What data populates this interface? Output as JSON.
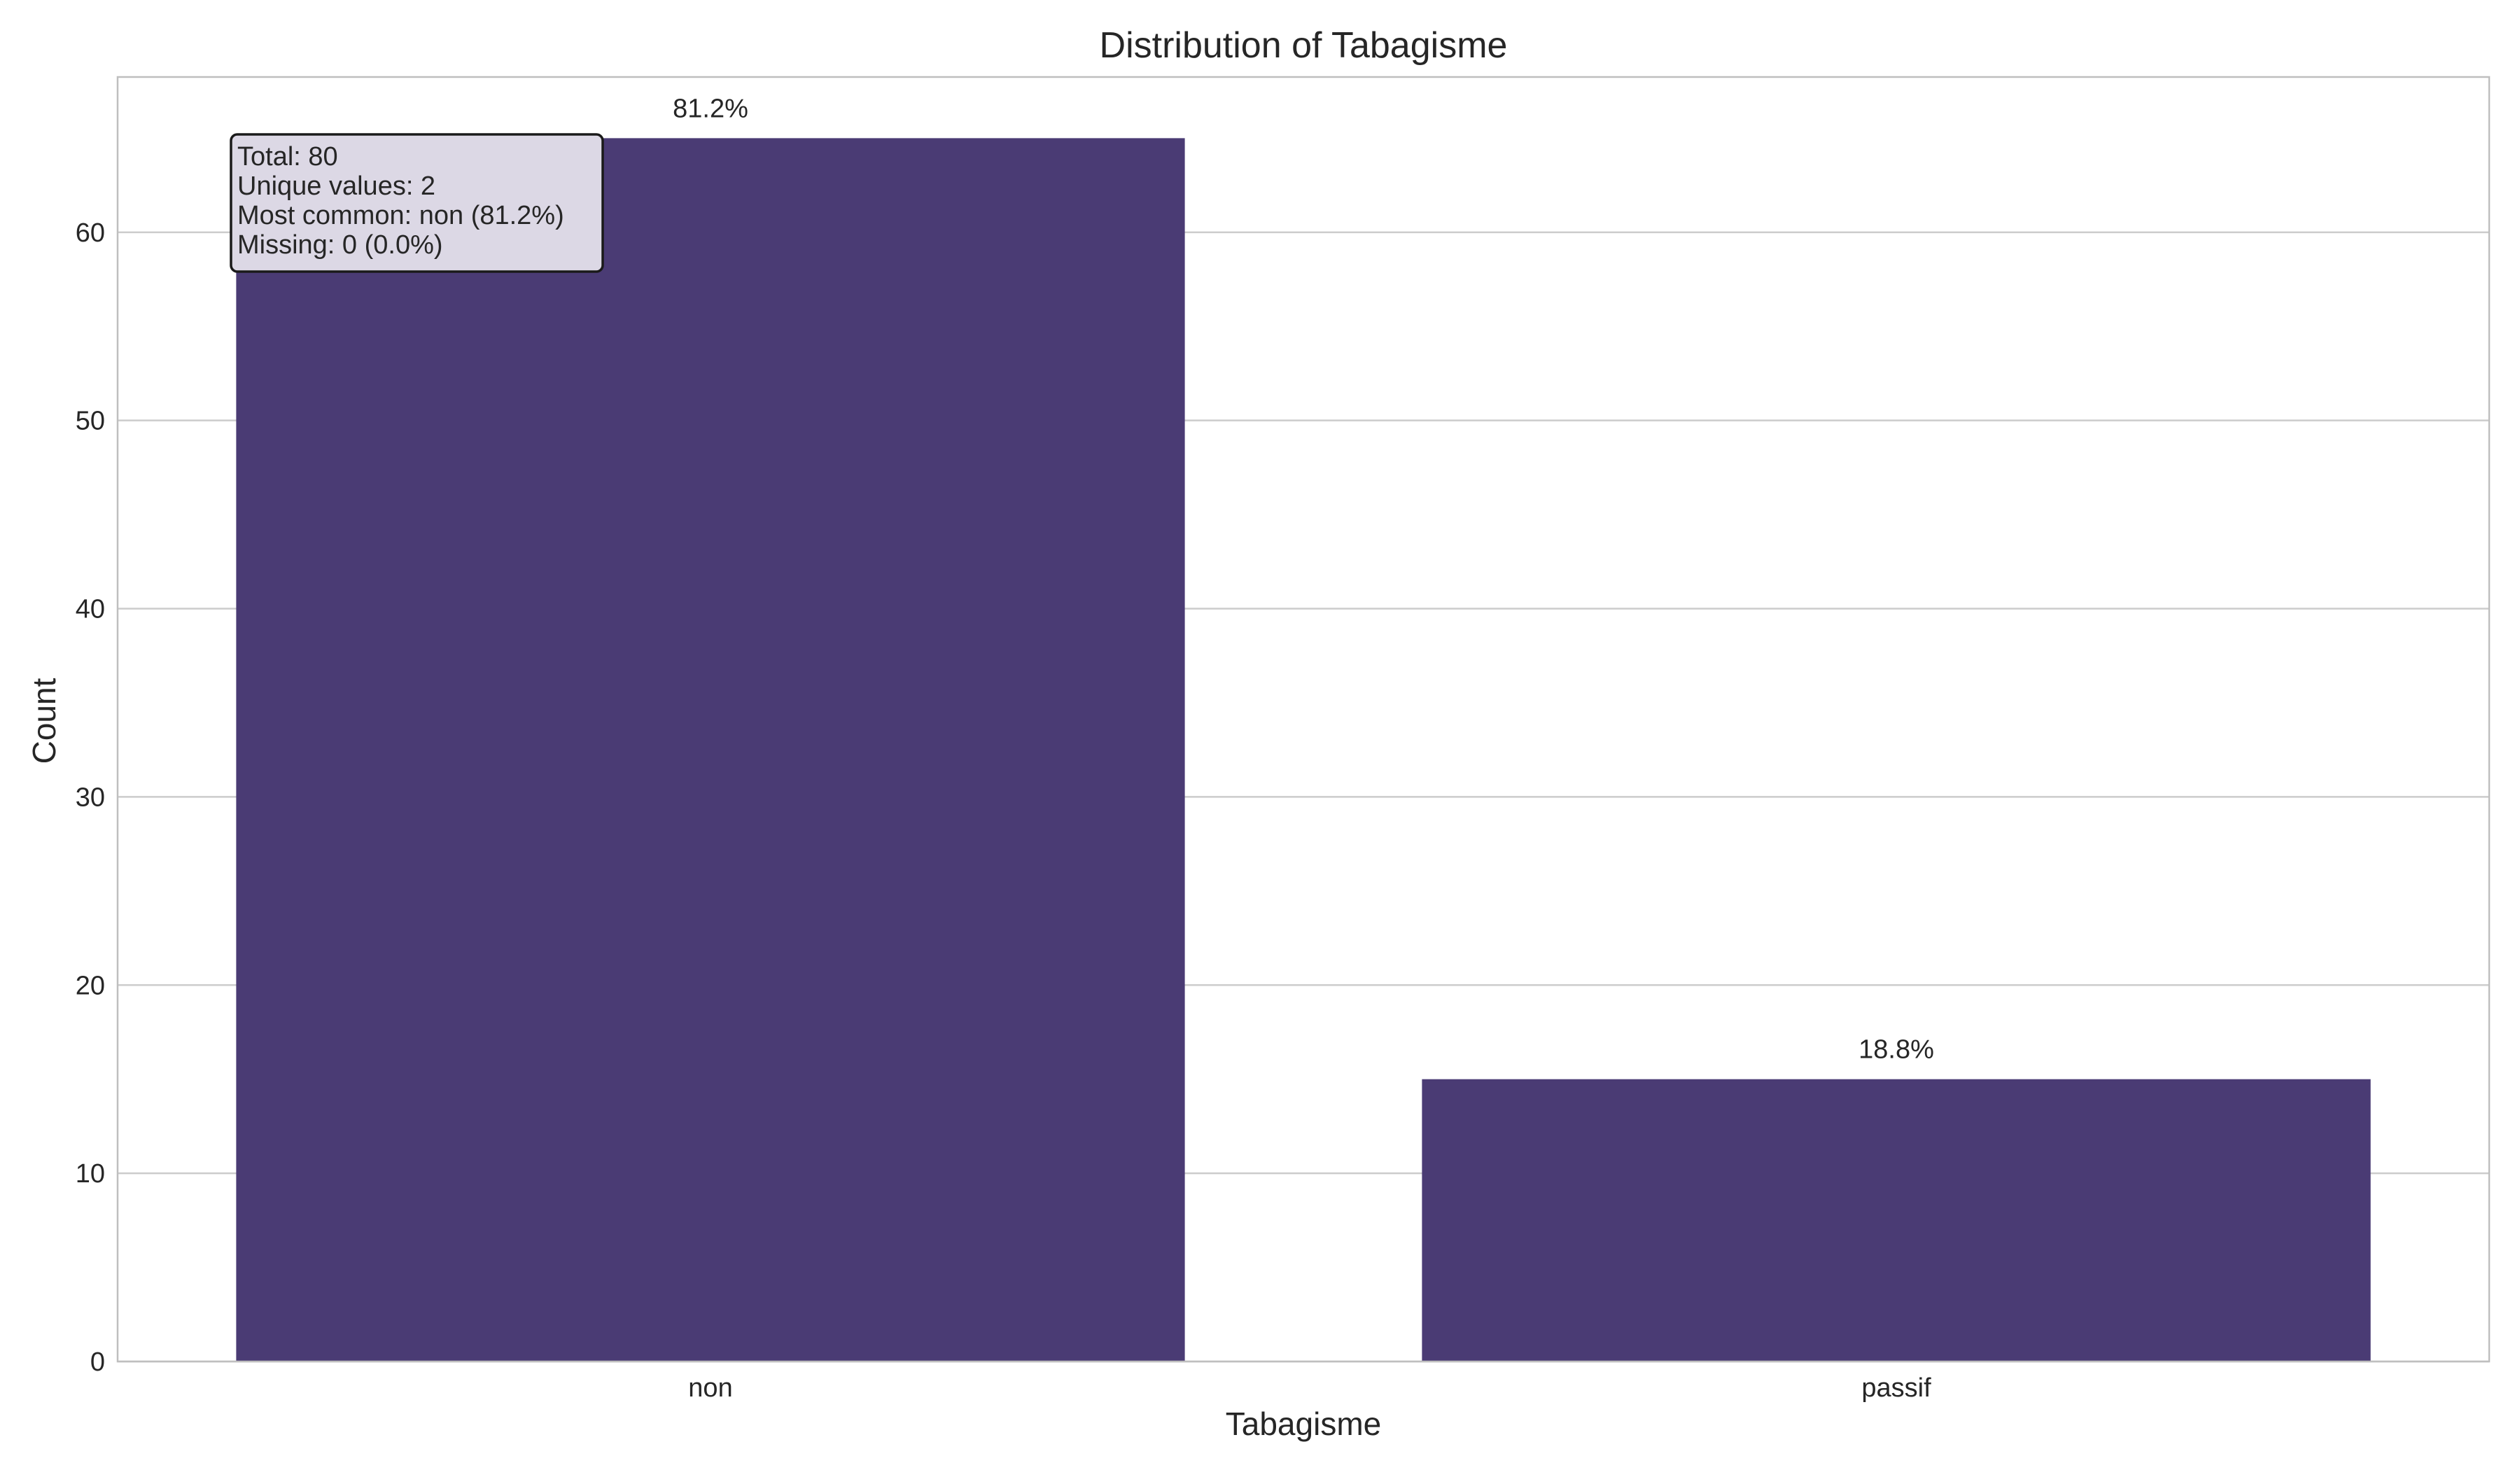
{
  "colors": {
    "bar": "#4a3b74",
    "grid": "#cccccc",
    "frame": "#bfbfbf",
    "text": "#262626",
    "stats_box_fill": "#dcd8e5",
    "stats_box_border": "#1a1a1a"
  },
  "chart_data": {
    "type": "bar",
    "title": "Distribution of Tabagisme",
    "xlabel": "Tabagisme",
    "ylabel": "Count",
    "categories": [
      "non",
      "passif"
    ],
    "values": [
      65,
      15
    ],
    "data_labels": [
      "81.2%",
      "18.8%"
    ],
    "ylim": [
      0,
      68.25
    ],
    "yticks": [
      0,
      10,
      20,
      30,
      40,
      50,
      60
    ],
    "grid": "horizontal",
    "legend": "none",
    "annotation": {
      "placement": "top-left",
      "lines": [
        "Total: 80",
        "Unique values: 2",
        "Most common: non (81.2%)",
        "Missing: 0 (0.0%)"
      ]
    }
  }
}
